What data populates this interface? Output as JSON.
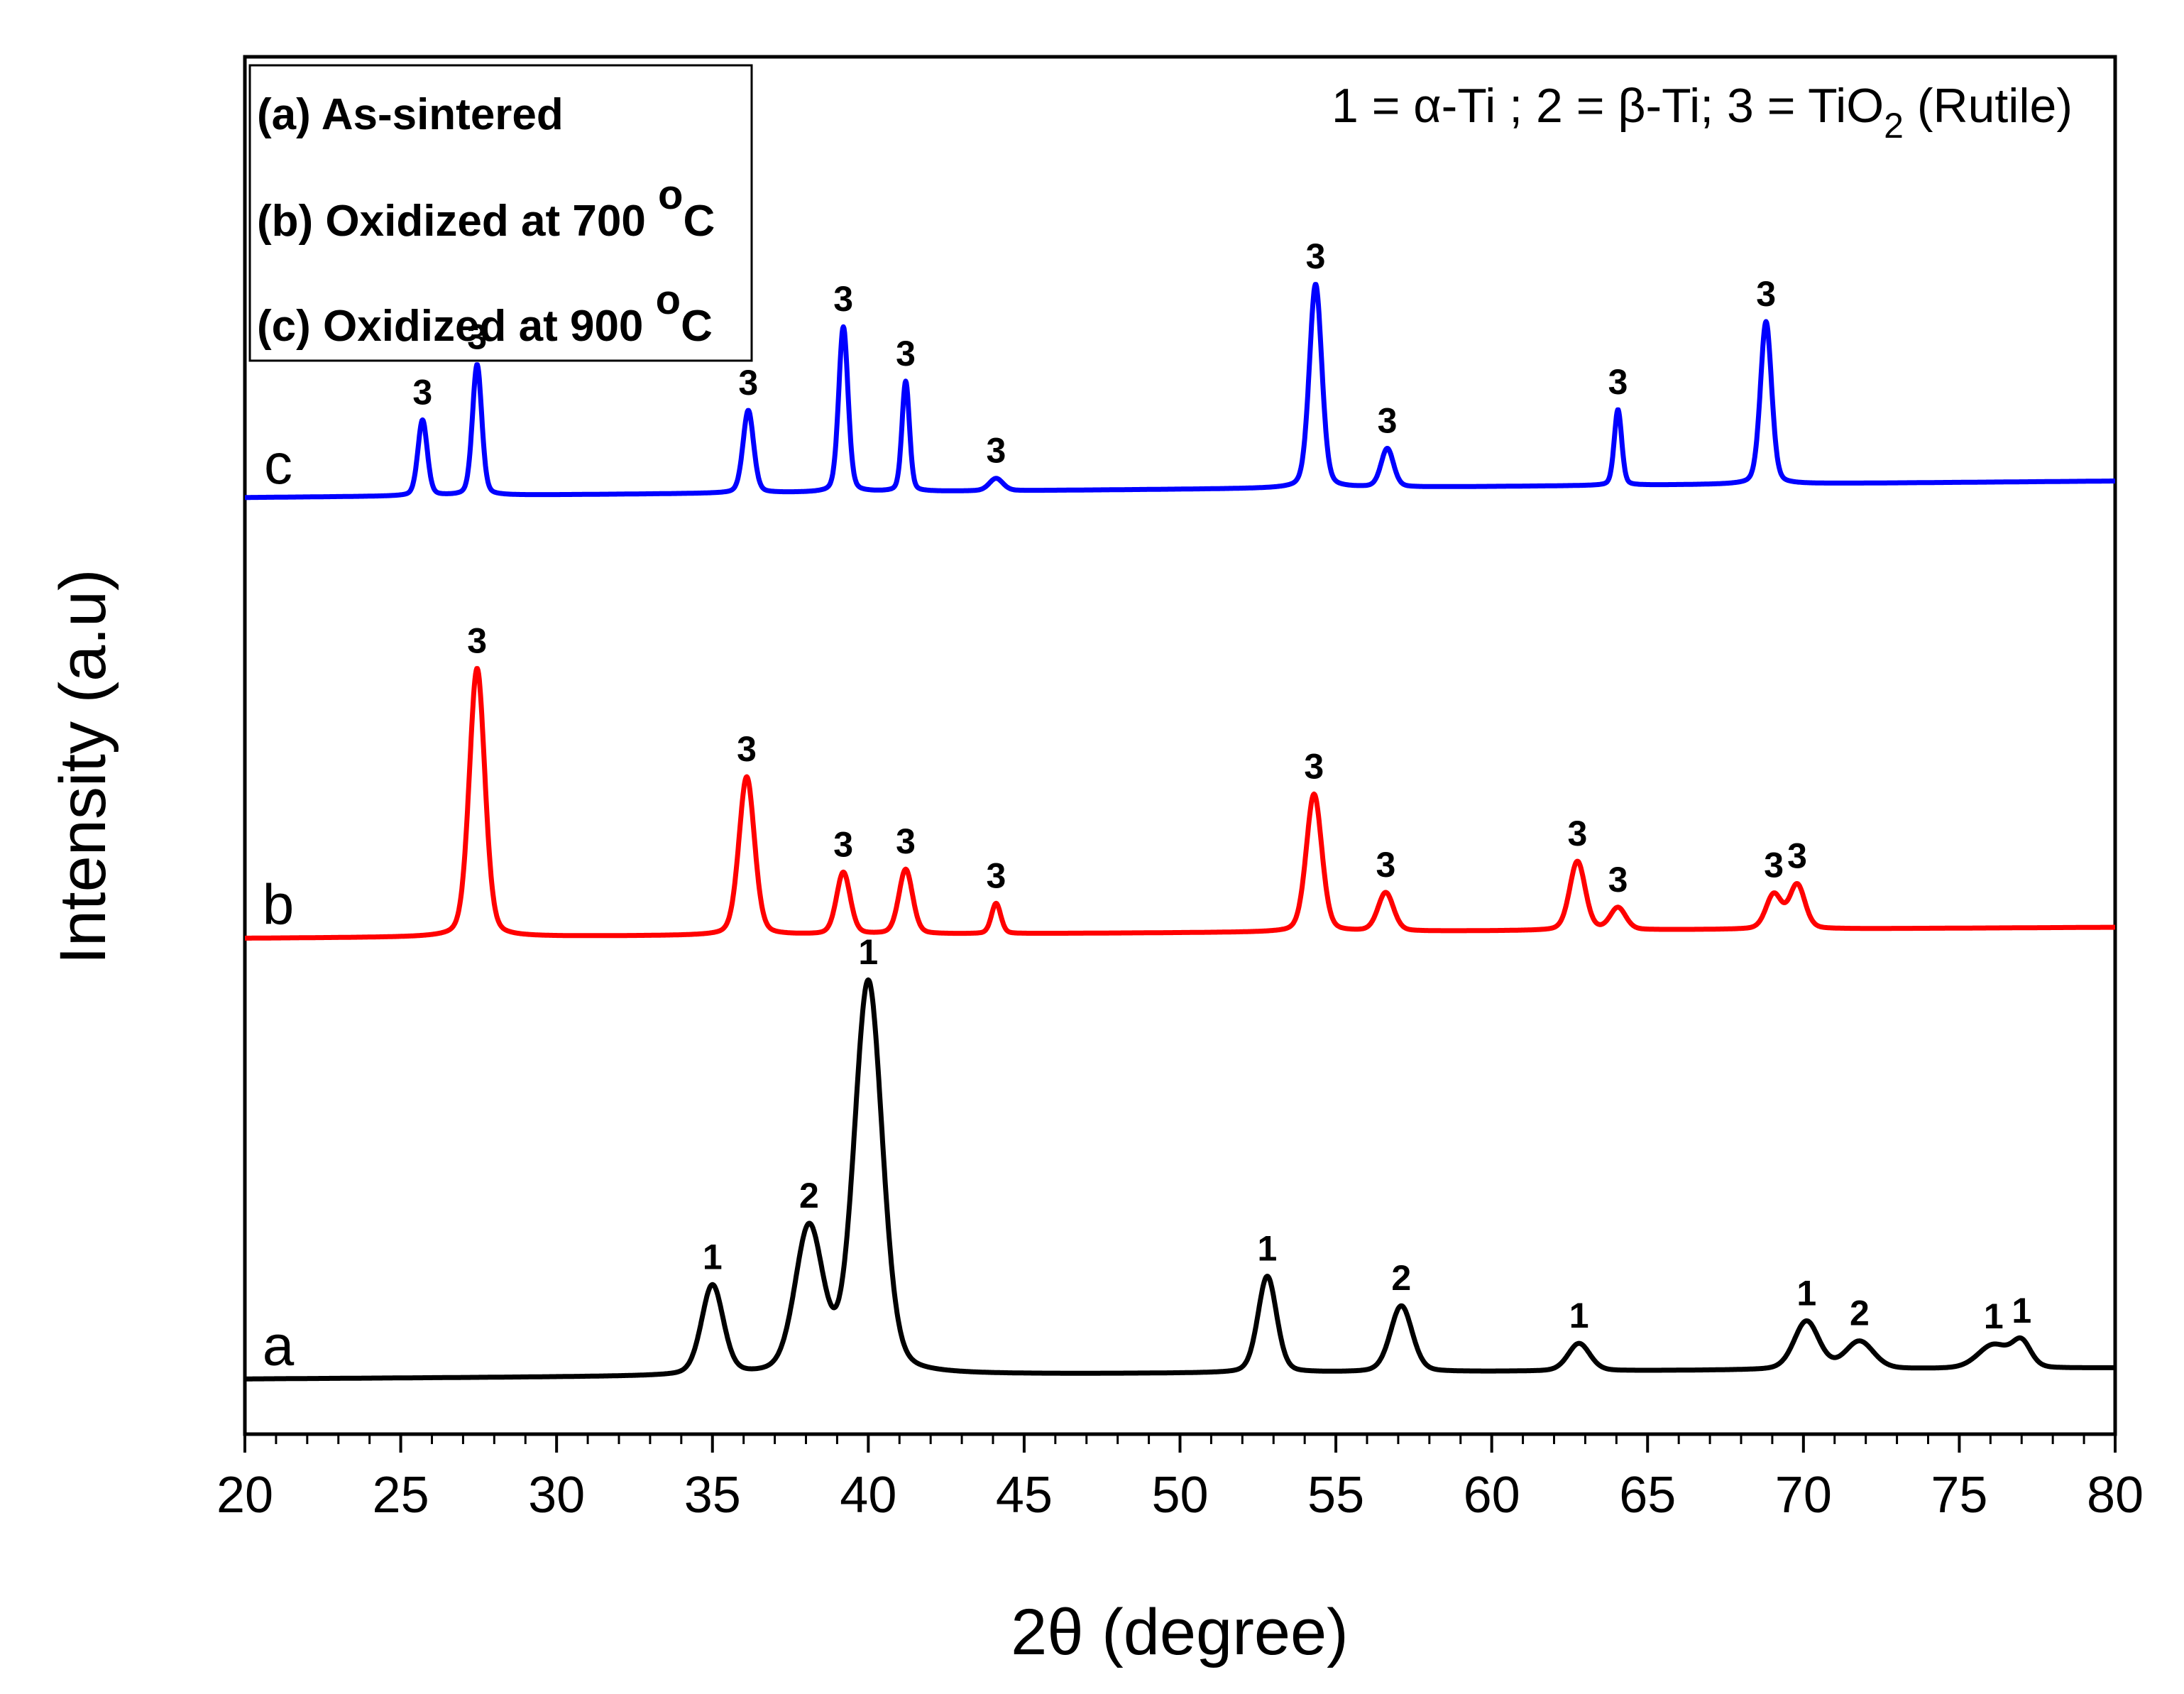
{
  "chart_data": {
    "type": "line",
    "title": "",
    "xlabel": "2θ (degree)",
    "ylabel": "Intensity (a.u)",
    "xlim": [
      20,
      80
    ],
    "ylim": [
      0,
      100
    ],
    "x_ticks": [
      20,
      25,
      30,
      35,
      40,
      45,
      50,
      55,
      60,
      65,
      70,
      75,
      80
    ],
    "x_tick_labels": [
      "20",
      "25",
      "30",
      "35",
      "40",
      "45",
      "50",
      "55",
      "60",
      "65",
      "70",
      "75",
      "80"
    ],
    "y_ticks_shown": false,
    "legend_box": {
      "position": "top-left",
      "entries": [
        "(a) As-sintered",
        "(b) Oxidized at 700 ",
        "(c) Oxidized at 900 "
      ],
      "superscript": "o",
      "unit": "C"
    },
    "phase_key": {
      "position": "top-right",
      "text_pre": "1 = α-Ti ; 2 = β-Ti; 3 = TiO",
      "subscript": "2",
      "text_post": " (Rutile)"
    },
    "series": [
      {
        "name": "a",
        "label": "a",
        "description": "As-sintered",
        "color": "#000000",
        "baseline": 4,
        "baseline_end": 4.8,
        "peaks": [
          {
            "x": 35.0,
            "height": 6.5,
            "width": 0.35,
            "label": "1"
          },
          {
            "x": 38.1,
            "height": 10.5,
            "width": 0.45,
            "label": "2"
          },
          {
            "x": 40.0,
            "height": 28.5,
            "width": 0.45,
            "label": "1"
          },
          {
            "x": 52.8,
            "height": 7.0,
            "width": 0.3,
            "label": "1"
          },
          {
            "x": 57.1,
            "height": 4.8,
            "width": 0.35,
            "label": "2"
          },
          {
            "x": 62.8,
            "height": 2.0,
            "width": 0.35,
            "label": "1"
          },
          {
            "x": 70.1,
            "height": 3.5,
            "width": 0.4,
            "label": "1"
          },
          {
            "x": 71.8,
            "height": 2.0,
            "width": 0.45,
            "label": "2"
          },
          {
            "x": 76.1,
            "height": 1.7,
            "width": 0.5,
            "label": "1"
          },
          {
            "x": 77.0,
            "height": 1.8,
            "width": 0.3,
            "label": "1"
          }
        ]
      },
      {
        "name": "b",
        "label": "b",
        "description": "Oxidized at 700 oC",
        "color": "#ff0000",
        "baseline": 36,
        "baseline_end": 36.8,
        "peaks": [
          {
            "x": 27.45,
            "height": 19.5,
            "width": 0.25,
            "label": "3"
          },
          {
            "x": 36.1,
            "height": 11.5,
            "width": 0.25,
            "label": "3"
          },
          {
            "x": 39.2,
            "height": 4.5,
            "width": 0.22,
            "label": "3"
          },
          {
            "x": 41.2,
            "height": 4.7,
            "width": 0.22,
            "label": "3"
          },
          {
            "x": 44.1,
            "height": 2.2,
            "width": 0.15,
            "label": "3"
          },
          {
            "x": 54.3,
            "height": 10.0,
            "width": 0.25,
            "label": "3"
          },
          {
            "x": 56.6,
            "height": 2.8,
            "width": 0.25,
            "label": "3"
          },
          {
            "x": 62.75,
            "height": 5.0,
            "width": 0.25,
            "label": "3"
          },
          {
            "x": 64.05,
            "height": 1.6,
            "width": 0.25,
            "label": "3"
          },
          {
            "x": 69.05,
            "height": 2.5,
            "width": 0.25,
            "label": "3"
          },
          {
            "x": 69.8,
            "height": 3.2,
            "width": 0.25,
            "label": "3"
          }
        ]
      },
      {
        "name": "c",
        "label": "c",
        "description": "Oxidized at 900 oC",
        "color": "#0000ff",
        "baseline": 68,
        "baseline_end": 69.2,
        "peaks": [
          {
            "x": 25.7,
            "height": 5.5,
            "width": 0.15,
            "label": "3"
          },
          {
            "x": 27.45,
            "height": 9.5,
            "width": 0.15,
            "label": "3"
          },
          {
            "x": 36.15,
            "height": 6.0,
            "width": 0.17,
            "label": "3"
          },
          {
            "x": 39.2,
            "height": 12.0,
            "width": 0.15,
            "label": "3"
          },
          {
            "x": 41.2,
            "height": 8.0,
            "width": 0.12,
            "label": "3"
          },
          {
            "x": 44.1,
            "height": 0.9,
            "width": 0.22,
            "label": "3"
          },
          {
            "x": 54.35,
            "height": 14.8,
            "width": 0.2,
            "label": "3"
          },
          {
            "x": 56.65,
            "height": 2.8,
            "width": 0.2,
            "label": "3"
          },
          {
            "x": 64.05,
            "height": 5.5,
            "width": 0.12,
            "label": "3"
          },
          {
            "x": 68.8,
            "height": 11.8,
            "width": 0.18,
            "label": "3"
          }
        ]
      }
    ]
  }
}
